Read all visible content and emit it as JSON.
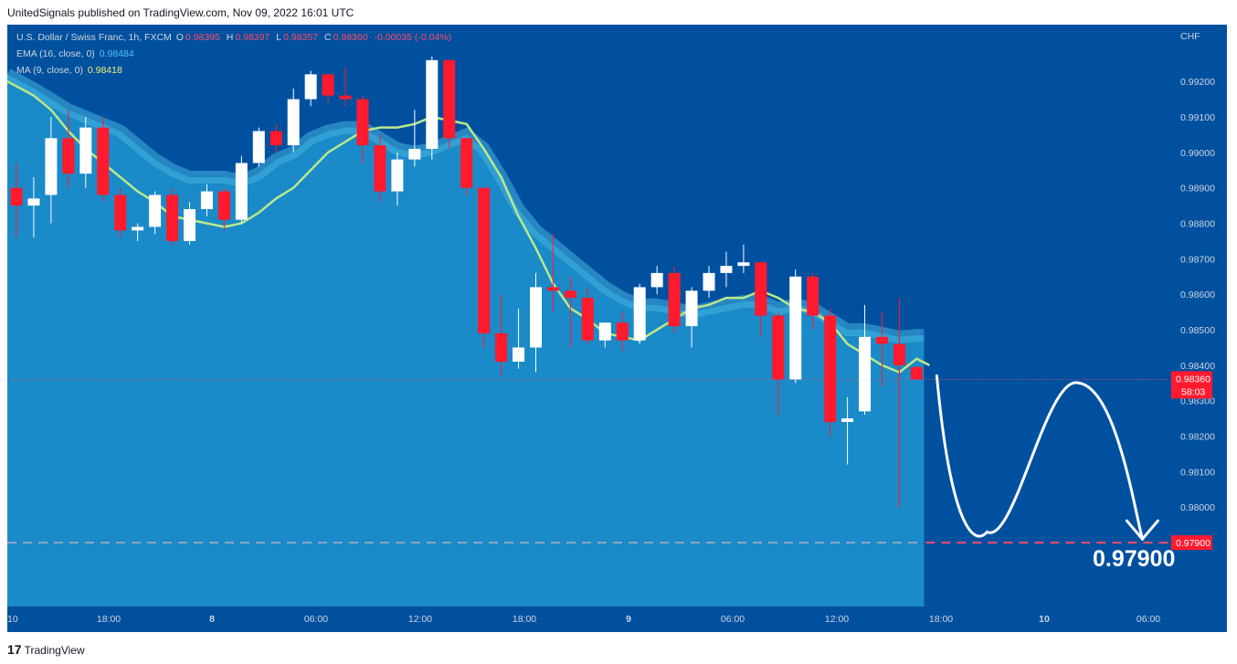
{
  "header": {
    "publish_line": "UnitedSignals published on TradingView.com, Nov 09, 2022 16:01 UTC"
  },
  "legend": {
    "symbol": "U.S. Dollar / Swiss Franc, 1h, FXCM",
    "o_label": "O",
    "o_value": "0.98395",
    "h_label": "H",
    "h_value": "0.98397",
    "l_label": "L",
    "l_value": "0.98357",
    "c_label": "C",
    "c_value": "0.98360",
    "change": "-0.00035 (-0.04%)",
    "ema_label": "EMA (16, close, 0)",
    "ema_value": "0.98484",
    "ma_label": "MA (9, close, 0)",
    "ma_value": "0.98418"
  },
  "footer": {
    "logo": "17",
    "brand": "TradingView"
  },
  "colors": {
    "background": "#0050a0",
    "ema_fill": "#1a8ac8",
    "ema_band": "#45b2de",
    "ma_line": "#b9e88a",
    "candle_up": "#ffffff",
    "candle_down": "#ff1a2e",
    "target_line": "#ff4a68",
    "projection": "#ffffff"
  },
  "chart_data": {
    "type": "candlestick",
    "currency": "CHF",
    "ylim": [
      0.9772,
      0.9936
    ],
    "y_ticks": [
      "0.98000",
      "0.98100",
      "0.98200",
      "0.98300",
      "0.98400",
      "0.98500",
      "0.98600",
      "0.98700",
      "0.98800",
      "0.98900",
      "0.99000",
      "0.99100",
      "0.99200"
    ],
    "x_ticks": [
      "10",
      "18:00",
      "8",
      "06:00",
      "12:00",
      "18:00",
      "9",
      "06:00",
      "12:00",
      "18:00",
      "10",
      "06:00"
    ],
    "candles": [
      {
        "o": 0.989,
        "h": 0.9897,
        "l": 0.9876,
        "c": 0.9885
      },
      {
        "o": 0.9885,
        "h": 0.9893,
        "l": 0.9876,
        "c": 0.9887
      },
      {
        "o": 0.9888,
        "h": 0.991,
        "l": 0.988,
        "c": 0.9904
      },
      {
        "o": 0.9904,
        "h": 0.9912,
        "l": 0.989,
        "c": 0.9894
      },
      {
        "o": 0.9894,
        "h": 0.991,
        "l": 0.989,
        "c": 0.9907
      },
      {
        "o": 0.9907,
        "h": 0.991,
        "l": 0.9886,
        "c": 0.9888
      },
      {
        "o": 0.9888,
        "h": 0.989,
        "l": 0.9876,
        "c": 0.9878
      },
      {
        "o": 0.9878,
        "h": 0.988,
        "l": 0.9875,
        "c": 0.9879
      },
      {
        "o": 0.9879,
        "h": 0.9889,
        "l": 0.9877,
        "c": 0.9888
      },
      {
        "o": 0.9888,
        "h": 0.989,
        "l": 0.9874,
        "c": 0.9875
      },
      {
        "o": 0.9875,
        "h": 0.9886,
        "l": 0.9874,
        "c": 0.9884
      },
      {
        "o": 0.9884,
        "h": 0.9891,
        "l": 0.9882,
        "c": 0.9889
      },
      {
        "o": 0.9889,
        "h": 0.989,
        "l": 0.9878,
        "c": 0.9881
      },
      {
        "o": 0.9881,
        "h": 0.9899,
        "l": 0.988,
        "c": 0.9897
      },
      {
        "o": 0.9897,
        "h": 0.9907,
        "l": 0.9896,
        "c": 0.9906
      },
      {
        "o": 0.9906,
        "h": 0.9908,
        "l": 0.99,
        "c": 0.9902
      },
      {
        "o": 0.9902,
        "h": 0.9918,
        "l": 0.99,
        "c": 0.9915
      },
      {
        "o": 0.9915,
        "h": 0.9923,
        "l": 0.9913,
        "c": 0.9922
      },
      {
        "o": 0.9922,
        "h": 0.9922,
        "l": 0.9914,
        "c": 0.9916
      },
      {
        "o": 0.9916,
        "h": 0.9924,
        "l": 0.9913,
        "c": 0.9915
      },
      {
        "o": 0.9915,
        "h": 0.9916,
        "l": 0.9897,
        "c": 0.9902
      },
      {
        "o": 0.9902,
        "h": 0.9905,
        "l": 0.9886,
        "c": 0.9889
      },
      {
        "o": 0.9889,
        "h": 0.99,
        "l": 0.9885,
        "c": 0.9898
      },
      {
        "o": 0.9898,
        "h": 0.9912,
        "l": 0.9896,
        "c": 0.9901
      },
      {
        "o": 0.9901,
        "h": 0.9927,
        "l": 0.9898,
        "c": 0.9926
      },
      {
        "o": 0.9926,
        "h": 0.9926,
        "l": 0.9901,
        "c": 0.9904
      },
      {
        "o": 0.9904,
        "h": 0.9904,
        "l": 0.9888,
        "c": 0.989
      },
      {
        "o": 0.989,
        "h": 0.989,
        "l": 0.9845,
        "c": 0.9849
      },
      {
        "o": 0.9849,
        "h": 0.986,
        "l": 0.9837,
        "c": 0.9841
      },
      {
        "o": 0.9841,
        "h": 0.9856,
        "l": 0.9839,
        "c": 0.9845
      },
      {
        "o": 0.9845,
        "h": 0.9866,
        "l": 0.9838,
        "c": 0.9862
      },
      {
        "o": 0.9862,
        "h": 0.9877,
        "l": 0.9855,
        "c": 0.9861
      },
      {
        "o": 0.9861,
        "h": 0.9865,
        "l": 0.9845,
        "c": 0.9859
      },
      {
        "o": 0.9859,
        "h": 0.9862,
        "l": 0.9846,
        "c": 0.9847
      },
      {
        "o": 0.9847,
        "h": 0.9852,
        "l": 0.9845,
        "c": 0.9852
      },
      {
        "o": 0.9852,
        "h": 0.9855,
        "l": 0.9844,
        "c": 0.9847
      },
      {
        "o": 0.9847,
        "h": 0.9863,
        "l": 0.9846,
        "c": 0.9862
      },
      {
        "o": 0.9862,
        "h": 0.9868,
        "l": 0.986,
        "c": 0.9866
      },
      {
        "o": 0.9866,
        "h": 0.9868,
        "l": 0.9849,
        "c": 0.9851
      },
      {
        "o": 0.9851,
        "h": 0.9862,
        "l": 0.9845,
        "c": 0.9861
      },
      {
        "o": 0.9861,
        "h": 0.9868,
        "l": 0.9859,
        "c": 0.9866
      },
      {
        "o": 0.9866,
        "h": 0.9872,
        "l": 0.9862,
        "c": 0.9868
      },
      {
        "o": 0.9868,
        "h": 0.9874,
        "l": 0.9866,
        "c": 0.9869
      },
      {
        "o": 0.9869,
        "h": 0.9869,
        "l": 0.9848,
        "c": 0.9854
      },
      {
        "o": 0.9854,
        "h": 0.9855,
        "l": 0.9826,
        "c": 0.9836
      },
      {
        "o": 0.9836,
        "h": 0.9867,
        "l": 0.9835,
        "c": 0.9865
      },
      {
        "o": 0.9865,
        "h": 0.9866,
        "l": 0.985,
        "c": 0.9854
      },
      {
        "o": 0.9854,
        "h": 0.9856,
        "l": 0.982,
        "c": 0.9824
      },
      {
        "o": 0.9824,
        "h": 0.9831,
        "l": 0.9812,
        "c": 0.9825
      },
      {
        "o": 0.9827,
        "h": 0.9857,
        "l": 0.9826,
        "c": 0.9848
      },
      {
        "o": 0.9848,
        "h": 0.9855,
        "l": 0.9834,
        "c": 0.9846
      },
      {
        "o": 0.9846,
        "h": 0.9859,
        "l": 0.98,
        "c": 0.984
      },
      {
        "o": 0.98395,
        "h": 0.98397,
        "l": 0.98357,
        "c": 0.9836
      }
    ],
    "ema_16": [
      0.9922,
      0.9918,
      0.9915,
      0.9912,
      0.991,
      0.9908,
      0.9906,
      0.9902,
      0.9898,
      0.9895,
      0.9893,
      0.9893,
      0.9893,
      0.9892,
      0.9894,
      0.9898,
      0.99,
      0.9904,
      0.9906,
      0.9907,
      0.9907,
      0.9904,
      0.9901,
      0.99,
      0.9901,
      0.9903,
      0.9905,
      0.9901,
      0.9893,
      0.9884,
      0.9878,
      0.9874,
      0.987,
      0.9866,
      0.9862,
      0.9859,
      0.9857,
      0.9857,
      0.9856,
      0.9855,
      0.9856,
      0.9857,
      0.9858,
      0.9858,
      0.9856,
      0.9857,
      0.9856,
      0.9853,
      0.985,
      0.985,
      0.9849,
      0.9848,
      0.98484
    ],
    "ma_9": [
      0.992,
      0.9916,
      0.9912,
      0.9906,
      0.9901,
      0.9897,
      0.9893,
      0.9889,
      0.9886,
      0.9882,
      0.9881,
      0.988,
      0.9879,
      0.988,
      0.9883,
      0.9887,
      0.989,
      0.9895,
      0.99,
      0.9903,
      0.9906,
      0.9907,
      0.9907,
      0.9908,
      0.991,
      0.9909,
      0.9908,
      0.9901,
      0.9893,
      0.9882,
      0.9873,
      0.9863,
      0.9856,
      0.9853,
      0.9849,
      0.9848,
      0.9847,
      0.985,
      0.9853,
      0.9856,
      0.9857,
      0.9859,
      0.9859,
      0.9861,
      0.9859,
      0.9856,
      0.9855,
      0.9852,
      0.9846,
      0.9843,
      0.984,
      0.9838,
      0.98418
    ],
    "last_price": {
      "value": "0.98360",
      "countdown": "58:03",
      "price": 0.9836
    },
    "target": {
      "label": "0.97900",
      "price": 0.979
    },
    "projection_path": [
      0.9837,
      0.9795,
      0.9793,
      0.9835,
      0.9791
    ]
  }
}
